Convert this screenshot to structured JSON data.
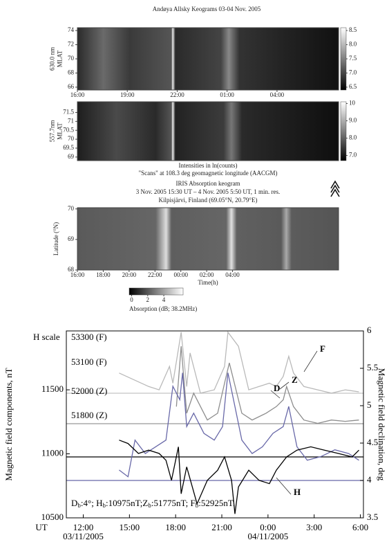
{
  "chart_data": [
    {
      "type": "heatmap",
      "title": "Andøya Allsky Keograms 03-04 Nov. 2005",
      "ylabel": [
        "630.0 nm",
        "MLAT"
      ],
      "xlim": [
        16,
        31.7
      ],
      "xticks": [
        {
          "value": 16,
          "label": "16:00"
        },
        {
          "value": 19,
          "label": "19:00"
        },
        {
          "value": 22,
          "label": "22:00"
        },
        {
          "value": 25,
          "label": "01:00"
        },
        {
          "value": 28,
          "label": "04:00"
        }
      ],
      "ylim": [
        65.6,
        74.4
      ],
      "yticks": [
        66,
        68,
        70,
        72,
        74
      ],
      "colorbar": {
        "lim": [
          6.4,
          8.6
        ],
        "ticks": [
          6.5,
          {
            "value": 7,
            "label": "7.0"
          },
          7.5,
          {
            "value": 8,
            "label": "8.0"
          },
          8.5
        ]
      }
    },
    {
      "type": "heatmap",
      "ylabel": [
        "557.7nm",
        "MLAT"
      ],
      "xlabel": [
        "Intensities in ln(counts)",
        "\"Scans\" at 108.3 deg geomagnetic longitude (AACGM)"
      ],
      "xlim": [
        16,
        31.7
      ],
      "ylim": [
        68.8,
        72.1
      ],
      "yticks": [
        69,
        69.5,
        70,
        70.5,
        71,
        71.5
      ],
      "colorbar": {
        "lim": [
          6.7,
          10.1
        ],
        "ticks": [
          {
            "value": 7,
            "label": "7.0"
          },
          {
            "value": 8,
            "label": "8.0"
          },
          {
            "value": 9,
            "label": "9.0"
          },
          10
        ]
      }
    },
    {
      "type": "heatmap",
      "title": [
        "IRIS Absorption keogram",
        "3 Nov. 2005 15:30 UT – 4 Nov. 2005 5:50 UT, 1 min. res.",
        "Kilpisjärvi, Finland (69.05°N, 20.79°E)"
      ],
      "ylabel": [
        "Latitude (°N)"
      ],
      "xlabel": [
        "Time(h)"
      ],
      "xlim": [
        16,
        36.2
      ],
      "xticks": [
        {
          "value": 16,
          "label": "16:00"
        },
        {
          "value": 18,
          "label": "18:00"
        },
        {
          "value": 20,
          "label": "20:00"
        },
        {
          "value": 22,
          "label": "22:00"
        },
        {
          "value": 24,
          "label": "00:00"
        },
        {
          "value": 26,
          "label": "02:00"
        },
        {
          "value": 28,
          "label": "04:00"
        }
      ],
      "ylim": [
        68,
        70.04
      ],
      "yticks": [
        68,
        69,
        70
      ],
      "colorbar": {
        "lim": [
          -0.3,
          6.4
        ],
        "ticks": [
          0,
          2,
          4
        ],
        "label": "Absorption (dB; 38.2MHz)",
        "orientation": "horizontal"
      }
    },
    {
      "type": "line",
      "ylabel": "Magnetic field components, nT",
      "y2label": "Magnetic field declination, deg",
      "xlabel": "UT",
      "xlim": [
        10.9,
        30.2
      ],
      "xticks": [
        {
          "value": 12,
          "label": "12:00"
        },
        {
          "value": 15,
          "label": "15:00"
        },
        {
          "value": 18,
          "label": "18:00"
        },
        {
          "value": 21,
          "label": "21:00"
        },
        {
          "value": 24,
          "label": "0:00"
        },
        {
          "value": 27,
          "label": "3:00"
        },
        {
          "value": 30,
          "label": "6:00"
        }
      ],
      "x_dates": [
        {
          "value": 12,
          "label": "03/11/2005"
        },
        {
          "value": 24,
          "label": "04/11/2005"
        }
      ],
      "ylim": [
        10500,
        11960
      ],
      "yticks": [
        10500,
        11000,
        11500
      ],
      "y2lim": [
        3.5,
        6
      ],
      "y2ticks": [
        3.5,
        4,
        4.5,
        5,
        5.5,
        6
      ],
      "annotations": [
        "H scale",
        "53300 (F)",
        "53100 (F)",
        "52000 (Z)",
        "51800 (Z)"
      ],
      "baseline_note": [
        "D",
        "b",
        ":4°; H",
        "b",
        ":10975nT;Z",
        "b",
        ":51775nT; F",
        "b",
        ":52925nT."
      ],
      "series": [
        {
          "name": "F",
          "color": "#b9b9b9",
          "x": [
            14.33,
            16.25,
            16.93,
            17.6,
            17.82,
            18.36,
            18.72,
            18.94,
            19.61,
            20.51,
            21.18,
            21.4,
            22.08,
            22.75,
            23.42,
            24.09,
            24.54,
            24.99,
            25.35,
            25.66,
            26.33,
            27.23,
            28.12,
            29.02,
            29.91
          ],
          "values": [
            11631,
            11526,
            11500,
            11683,
            11552,
            11950,
            11526,
            11788,
            11474,
            11500,
            11683,
            11950,
            11840,
            11500,
            11526,
            11552,
            11526,
            11605,
            11762,
            11631,
            11526,
            11500,
            11474,
            11500,
            11484
          ]
        },
        {
          "name": "Z",
          "color": "#8d8d8d",
          "x": [
            18.05,
            18.36,
            18.72,
            19.17,
            20.06,
            20.73,
            21.18,
            21.49,
            22.3,
            22.97,
            23.87,
            24.54,
            24.99,
            25.21,
            25.66,
            26.33,
            27.23,
            28.12,
            29.02,
            29.91
          ],
          "values": [
            11369,
            11840,
            11317,
            11474,
            11264,
            11317,
            11552,
            11710,
            11317,
            11264,
            11317,
            11369,
            11422,
            11526,
            11369,
            11264,
            11238,
            11264,
            11254,
            11264
          ]
        },
        {
          "name": "D",
          "color": "#6868a8",
          "axis": "y2",
          "x": [
            14.33,
            14.91,
            15.36,
            16.03,
            16.7,
            17.37,
            17.82,
            18.27,
            18.45,
            18.72,
            19.17,
            19.84,
            20.51,
            21.05,
            21.4,
            21.85,
            22.3,
            22.97,
            23.64,
            24.32,
            24.99,
            25.35,
            25.88,
            26.55,
            27.45,
            28.34,
            29.24,
            29.91
          ],
          "values": [
            4.14,
            4.05,
            4.54,
            4.36,
            4.45,
            4.54,
            5.26,
            5.08,
            5.44,
            4.72,
            4.9,
            4.63,
            4.54,
            4.72,
            5.44,
            4.99,
            4.54,
            4.36,
            4.45,
            4.63,
            4.72,
            4.99,
            4.45,
            4.27,
            4.32,
            4.41,
            4.36,
            4.27
          ]
        },
        {
          "name": "H",
          "color": "#000000",
          "x": [
            14.33,
            14.91,
            15.58,
            16.25,
            16.93,
            17.37,
            17.73,
            18.18,
            18.36,
            18.72,
            19.39,
            20.06,
            20.73,
            21.18,
            21.63,
            21.85,
            22.08,
            22.75,
            23.42,
            24.09,
            24.54,
            25.21,
            25.88,
            26.78,
            27.67,
            28.57,
            29.47,
            29.91
          ],
          "values": [
            11107,
            11081,
            11003,
            11029,
            11003,
            10950,
            10793,
            11055,
            10688,
            10898,
            10610,
            10793,
            10872,
            10976,
            10793,
            10531,
            10741,
            10872,
            10793,
            10767,
            10872,
            10976,
            11029,
            11055,
            11029,
            11003,
            10976,
            11029
          ]
        }
      ]
    }
  ]
}
